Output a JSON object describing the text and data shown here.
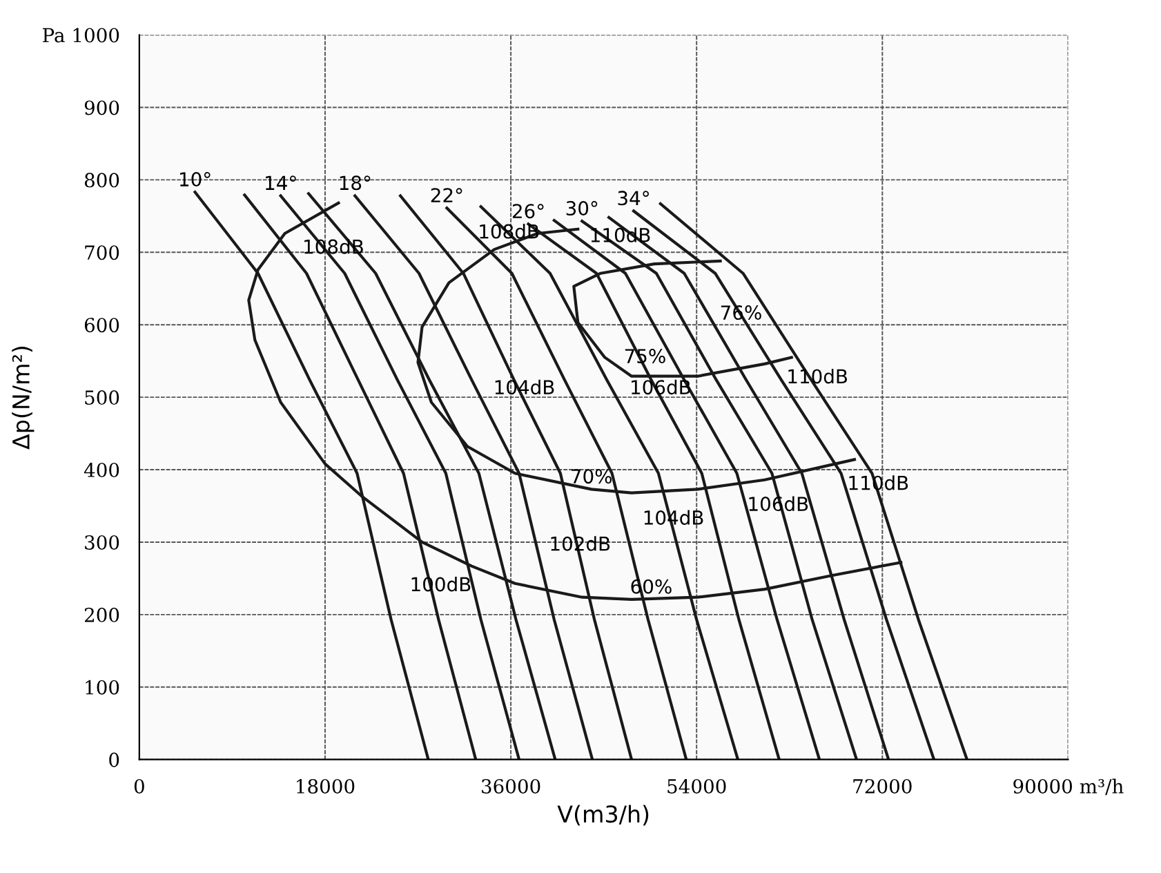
{
  "chart_data": {
    "type": "line",
    "xlabel": "V(m3/h)",
    "ylabel": "Δp(N/m²)",
    "xlim": [
      0,
      90000
    ],
    "ylim": [
      0,
      1000
    ],
    "xticks": [
      0,
      18000,
      36000,
      54000,
      72000,
      {
        "value": 90000,
        "label": "90000 m³/h"
      }
    ],
    "yticks": [
      0,
      100,
      200,
      300,
      400,
      500,
      600,
      700,
      800,
      900,
      {
        "value": 1000,
        "label": "Pa 1000"
      }
    ],
    "grid": true,
    "marker": "none",
    "line_style": "solid",
    "series": [
      {
        "color": "#1a1a1a",
        "x": [
          5400,
          11500,
          16500,
          21100,
          24400,
          28000
        ],
        "values": [
          783,
          671,
          524,
          395,
          193,
          0
        ]
      },
      {
        "color": "#1a1a1a",
        "x": [
          10200,
          16200,
          21200,
          25600,
          29000,
          32600
        ],
        "values": [
          779,
          671,
          524,
          395,
          193,
          0
        ]
      },
      {
        "color": "#1a1a1a",
        "x": [
          13700,
          19900,
          25000,
          29700,
          33100,
          36800
        ],
        "values": [
          778,
          671,
          524,
          395,
          193,
          0
        ]
      },
      {
        "color": "#1a1a1a",
        "x": [
          16400,
          22900,
          28100,
          32900,
          36500,
          40300
        ],
        "values": [
          781,
          671,
          524,
          395,
          193,
          0
        ]
      },
      {
        "color": "#1a1a1a",
        "x": [
          20900,
          27100,
          32200,
          36800,
          40200,
          43900
        ],
        "values": [
          778,
          671,
          524,
          395,
          193,
          0
        ]
      },
      {
        "color": "#1a1a1a",
        "x": [
          25300,
          31400,
          36300,
          40800,
          44100,
          47700
        ],
        "values": [
          778,
          671,
          524,
          395,
          193,
          0
        ]
      },
      {
        "color": "#1a1a1a",
        "x": [
          29800,
          36100,
          41200,
          45800,
          49300,
          53000
        ],
        "values": [
          761,
          671,
          524,
          395,
          193,
          0
        ]
      },
      {
        "color": "#1a1a1a",
        "x": [
          33100,
          39800,
          45300,
          50300,
          54000,
          58000
        ],
        "values": [
          763,
          671,
          524,
          395,
          193,
          0
        ]
      },
      {
        "color": "#1a1a1a",
        "x": [
          37700,
          44300,
          49600,
          54500,
          58100,
          62000
        ],
        "values": [
          739,
          671,
          524,
          395,
          193,
          0
        ]
      },
      {
        "color": "#1a1a1a",
        "x": [
          40200,
          47100,
          52800,
          57900,
          61800,
          65900
        ],
        "values": [
          744,
          671,
          524,
          395,
          193,
          0
        ]
      },
      {
        "color": "#1a1a1a",
        "x": [
          42900,
          50100,
          55900,
          61300,
          65200,
          69500
        ],
        "values": [
          743,
          671,
          524,
          395,
          193,
          0
        ]
      },
      {
        "color": "#1a1a1a",
        "x": [
          45500,
          52800,
          58800,
          64200,
          68300,
          72600
        ],
        "values": [
          748,
          671,
          524,
          395,
          193,
          0
        ]
      },
      {
        "color": "#1a1a1a",
        "x": [
          47900,
          55800,
          62200,
          68000,
          72400,
          77000
        ],
        "values": [
          757,
          671,
          524,
          395,
          193,
          0
        ]
      },
      {
        "color": "#1a1a1a",
        "x": [
          50500,
          58500,
          65100,
          71000,
          75500,
          80200
        ],
        "values": [
          767,
          671,
          524,
          395,
          193,
          0
        ]
      },
      {
        "color": "#1a1a1a",
        "x": [
          19300,
          14100,
          11500,
          10600,
          11200,
          13700,
          18000,
          21500,
          27400,
          32200,
          36400,
          42900,
          47700,
          54100,
          60600,
          67100,
          73800
        ],
        "values": [
          768,
          726,
          676,
          634,
          579,
          493,
          408,
          364,
          300,
          267,
          243,
          224,
          221,
          224,
          235,
          254,
          272
        ]
      },
      {
        "color": "#1a1a1a",
        "x": [
          42500,
          38600,
          34400,
          30000,
          27400,
          27000,
          28300,
          31800,
          36400,
          43800,
          47700,
          54100,
          60600,
          69300
        ],
        "values": [
          732,
          726,
          704,
          658,
          597,
          548,
          493,
          432,
          395,
          373,
          368,
          373,
          386,
          414
        ]
      },
      {
        "color": "#1a1a1a",
        "x": [
          56300,
          49900,
          44700,
          42100,
          42500,
          45100,
          47700,
          54100,
          60600,
          63200
        ],
        "values": [
          688,
          684,
          671,
          653,
          603,
          555,
          529,
          529,
          546,
          555
        ]
      }
    ],
    "annotations": [
      {
        "text": "10°",
        "x": 5400,
        "y": 783
      },
      {
        "text": "14°",
        "x": 13700,
        "y": 778
      },
      {
        "text": "18°",
        "x": 20900,
        "y": 778
      },
      {
        "text": "22°",
        "x": 29800,
        "y": 761
      },
      {
        "text": "26°",
        "x": 37700,
        "y": 739
      },
      {
        "text": "30°",
        "x": 42900,
        "y": 743
      },
      {
        "text": "34°",
        "x": 47900,
        "y": 757
      },
      {
        "text": "108dB",
        "x": 18800,
        "y": 690
      },
      {
        "text": "108dB",
        "x": 35800,
        "y": 711
      },
      {
        "text": "110dB",
        "x": 46600,
        "y": 706
      },
      {
        "text": "76%",
        "x": 58300,
        "y": 599
      },
      {
        "text": "75%",
        "x": 49000,
        "y": 539
      },
      {
        "text": "106dB",
        "x": 50500,
        "y": 496
      },
      {
        "text": "110dB",
        "x": 65700,
        "y": 511
      },
      {
        "text": "104dB",
        "x": 37300,
        "y": 496
      },
      {
        "text": "70%",
        "x": 43800,
        "y": 373
      },
      {
        "text": "110dB",
        "x": 71600,
        "y": 364
      },
      {
        "text": "106dB",
        "x": 61900,
        "y": 335
      },
      {
        "text": "104dB",
        "x": 51750,
        "y": 316
      },
      {
        "text": "102dB",
        "x": 42700,
        "y": 280
      },
      {
        "text": "100dB",
        "x": 29200,
        "y": 224
      },
      {
        "text": "60%",
        "x": 49600,
        "y": 221
      }
    ]
  }
}
